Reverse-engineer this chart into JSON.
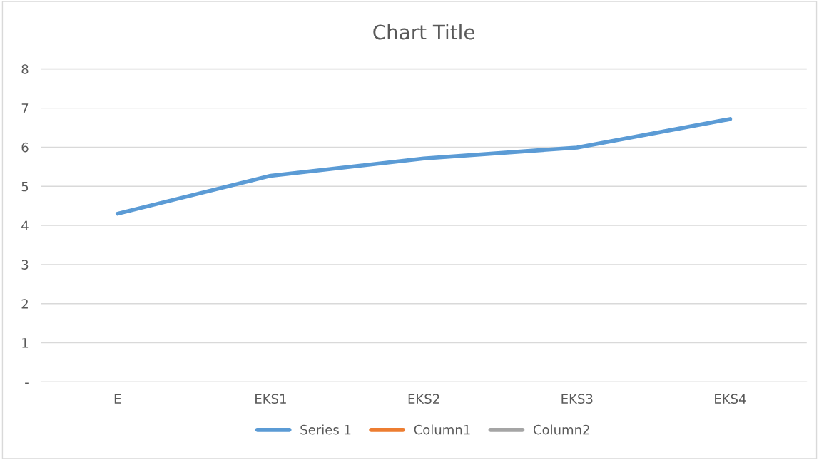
{
  "chart_data": {
    "type": "line",
    "title": "Chart Title",
    "categories": [
      "E",
      "EKS1",
      "EKS2",
      "EKS3",
      "EKS4"
    ],
    "series": [
      {
        "name": "Series 1",
        "color": "#5b9bd5",
        "values": [
          4.3,
          5.27,
          5.71,
          5.99,
          6.72
        ]
      },
      {
        "name": "Column1",
        "color": "#ed7d31",
        "values": [
          null,
          null,
          null,
          null,
          null
        ]
      },
      {
        "name": "Column2",
        "color": "#a5a5a5",
        "values": [
          null,
          null,
          null,
          null,
          null
        ]
      }
    ],
    "ylim": [
      0,
      8
    ],
    "yticks": [
      {
        "value": 0,
        "label": "-"
      },
      1,
      2,
      3,
      4,
      5,
      6,
      7,
      8
    ],
    "grid": "y",
    "legend": "bottom",
    "marker": "none",
    "line_style": "solid"
  }
}
